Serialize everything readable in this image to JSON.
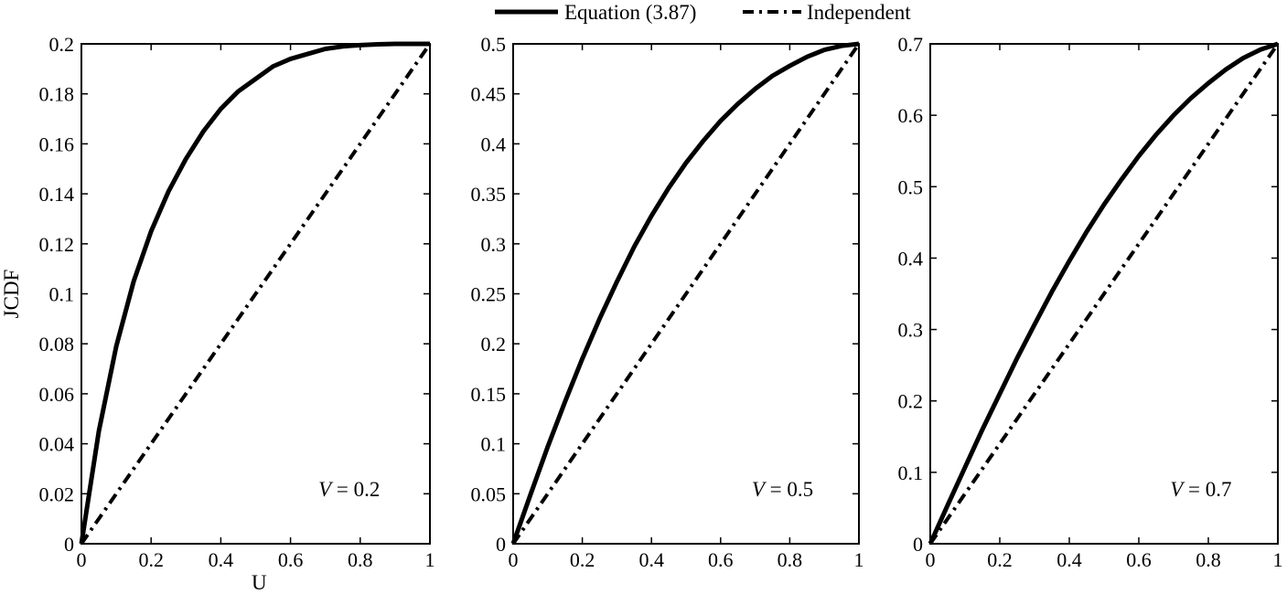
{
  "legend": {
    "entries": [
      {
        "label": "Equation (3.87)",
        "style": "solid"
      },
      {
        "label": "Independent",
        "style": "dashdot"
      }
    ],
    "placement": "top-center"
  },
  "colors": {
    "line": "#000000",
    "axes": "#000000",
    "background": "#ffffff"
  },
  "chart_data": [
    {
      "type": "line",
      "xlabel": "U",
      "ylabel": "JCDF",
      "annotation": {
        "var": "V",
        "op": " = ",
        "value": "0.2"
      },
      "xlim": [
        0,
        1
      ],
      "ylim": [
        0,
        0.2
      ],
      "xticks": [
        "0",
        "0.2",
        "0.4",
        "0.6",
        "0.8",
        "1"
      ],
      "yticks": [
        "0",
        "0.02",
        "0.04",
        "0.06",
        "0.08",
        "0.1",
        "0.12",
        "0.14",
        "0.16",
        "0.18",
        "0.2"
      ],
      "grid": false,
      "series": [
        {
          "name": "Equation (3.87)",
          "style": "solid",
          "x": [
            0,
            0.05,
            0.1,
            0.15,
            0.2,
            0.25,
            0.3,
            0.35,
            0.4,
            0.45,
            0.5,
            0.55,
            0.6,
            0.65,
            0.7,
            0.75,
            0.8,
            0.85,
            0.9,
            0.95,
            1
          ],
          "y": [
            0,
            0.045,
            0.079,
            0.105,
            0.125,
            0.141,
            0.154,
            0.165,
            0.174,
            0.181,
            0.186,
            0.191,
            0.194,
            0.196,
            0.198,
            0.199,
            0.1995,
            0.1998,
            0.2,
            0.2,
            0.2
          ]
        },
        {
          "name": "Independent",
          "style": "dashdot",
          "x": [
            0,
            1
          ],
          "y": [
            0,
            0.2
          ]
        }
      ]
    },
    {
      "type": "line",
      "xlabel": "",
      "ylabel": "",
      "annotation": {
        "var": "V",
        "op": " = ",
        "value": "0.5"
      },
      "xlim": [
        0,
        1
      ],
      "ylim": [
        0,
        0.5
      ],
      "xticks": [
        "0",
        "0.2",
        "0.4",
        "0.6",
        "0.8",
        "1"
      ],
      "yticks": [
        "0",
        "0.05",
        "0.1",
        "0.15",
        "0.2",
        "0.25",
        "0.3",
        "0.35",
        "0.4",
        "0.45",
        "0.5"
      ],
      "grid": false,
      "series": [
        {
          "name": "Equation (3.87)",
          "style": "solid",
          "x": [
            0,
            0.05,
            0.1,
            0.15,
            0.2,
            0.25,
            0.3,
            0.35,
            0.4,
            0.45,
            0.5,
            0.55,
            0.6,
            0.65,
            0.7,
            0.75,
            0.8,
            0.85,
            0.9,
            0.95,
            1
          ],
          "y": [
            0,
            0.049,
            0.097,
            0.142,
            0.185,
            0.225,
            0.262,
            0.297,
            0.328,
            0.356,
            0.381,
            0.403,
            0.423,
            0.44,
            0.455,
            0.468,
            0.478,
            0.487,
            0.494,
            0.498,
            0.5
          ]
        },
        {
          "name": "Independent",
          "style": "dashdot",
          "x": [
            0,
            1
          ],
          "y": [
            0,
            0.5
          ]
        }
      ]
    },
    {
      "type": "line",
      "xlabel": "",
      "ylabel": "",
      "annotation": {
        "var": "V",
        "op": " = ",
        "value": "0.7"
      },
      "xlim": [
        0,
        1
      ],
      "ylim": [
        0,
        0.7
      ],
      "xticks": [
        "0",
        "0.2",
        "0.4",
        "0.6",
        "0.8",
        "1"
      ],
      "yticks": [
        "0",
        "0.1",
        "0.2",
        "0.3",
        "0.4",
        "0.5",
        "0.6",
        "0.7"
      ],
      "grid": false,
      "series": [
        {
          "name": "Equation (3.87)",
          "style": "solid",
          "x": [
            0,
            0.05,
            0.1,
            0.15,
            0.2,
            0.25,
            0.3,
            0.35,
            0.4,
            0.45,
            0.5,
            0.55,
            0.6,
            0.65,
            0.7,
            0.75,
            0.8,
            0.85,
            0.9,
            0.95,
            1
          ],
          "y": [
            0,
            0.054,
            0.107,
            0.16,
            0.21,
            0.26,
            0.307,
            0.353,
            0.396,
            0.437,
            0.475,
            0.51,
            0.543,
            0.573,
            0.6,
            0.624,
            0.645,
            0.664,
            0.68,
            0.692,
            0.7
          ]
        },
        {
          "name": "Independent",
          "style": "dashdot",
          "x": [
            0,
            1
          ],
          "y": [
            0,
            0.7
          ]
        }
      ]
    }
  ]
}
